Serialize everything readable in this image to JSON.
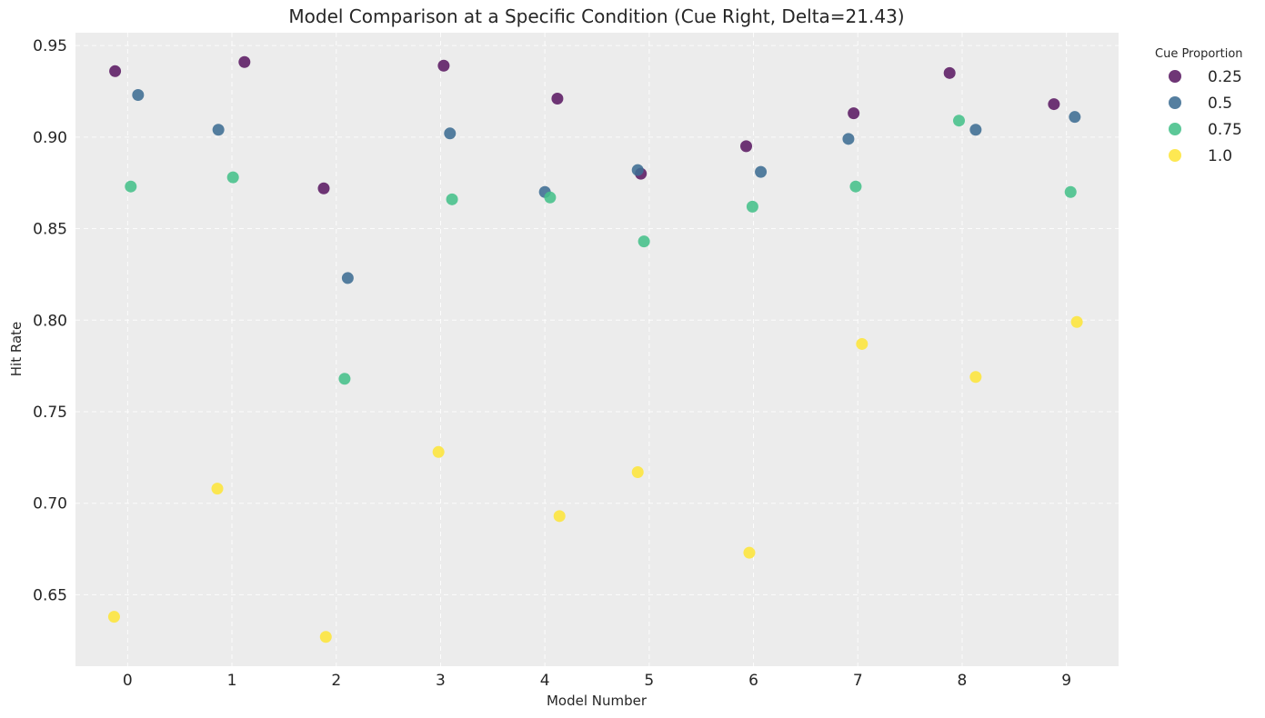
{
  "chart_data": {
    "type": "scatter",
    "title": "Model Comparison at a Specific Condition (Cue Right, Delta=21.43)",
    "xlabel": "Model Number",
    "ylabel": "Hit Rate",
    "xlim": [
      -0.5,
      9.5
    ],
    "ylim": [
      0.611,
      0.957
    ],
    "x_ticks": [
      0,
      1,
      2,
      3,
      4,
      5,
      6,
      7,
      8,
      9
    ],
    "x_tick_labels": [
      "0",
      "1",
      "2",
      "3",
      "4",
      "5",
      "6",
      "7",
      "8",
      "9"
    ],
    "y_ticks": [
      0.65,
      0.7,
      0.75,
      0.8,
      0.85,
      0.9,
      0.95
    ],
    "y_tick_labels": [
      "0.65",
      "0.70",
      "0.75",
      "0.80",
      "0.85",
      "0.90",
      "0.95"
    ],
    "grid": true,
    "legend": {
      "title": "Cue Proportion",
      "placement": "outside-top-right"
    },
    "series": [
      {
        "name": "0.25",
        "color": "#5b1a63",
        "x": [
          -0.12,
          1.12,
          1.88,
          3.03,
          4.12,
          4.92,
          5.93,
          6.96,
          7.88,
          8.88
        ],
        "y": [
          0.936,
          0.941,
          0.872,
          0.939,
          0.921,
          0.88,
          0.895,
          0.913,
          0.935,
          0.918
        ]
      },
      {
        "name": "0.5",
        "color": "#3e6d93",
        "x": [
          0.1,
          0.87,
          2.11,
          3.09,
          4.0,
          4.89,
          6.07,
          6.91,
          8.13,
          9.08
        ],
        "y": [
          0.923,
          0.904,
          0.823,
          0.902,
          0.87,
          0.882,
          0.881,
          0.899,
          0.904,
          0.911
        ]
      },
      {
        "name": "0.75",
        "color": "#45c08a",
        "x": [
          0.03,
          1.01,
          2.08,
          3.11,
          4.05,
          4.95,
          5.99,
          6.98,
          7.97,
          9.04
        ],
        "y": [
          0.873,
          0.878,
          0.768,
          0.866,
          0.867,
          0.843,
          0.862,
          0.873,
          0.909,
          0.87
        ]
      },
      {
        "name": "1.0",
        "color": "#fde53a",
        "x": [
          -0.13,
          0.86,
          1.9,
          2.98,
          4.14,
          4.89,
          5.96,
          7.04,
          8.13,
          9.1
        ],
        "y": [
          0.638,
          0.708,
          0.627,
          0.728,
          0.693,
          0.717,
          0.673,
          0.787,
          0.769,
          0.799
        ]
      }
    ]
  }
}
